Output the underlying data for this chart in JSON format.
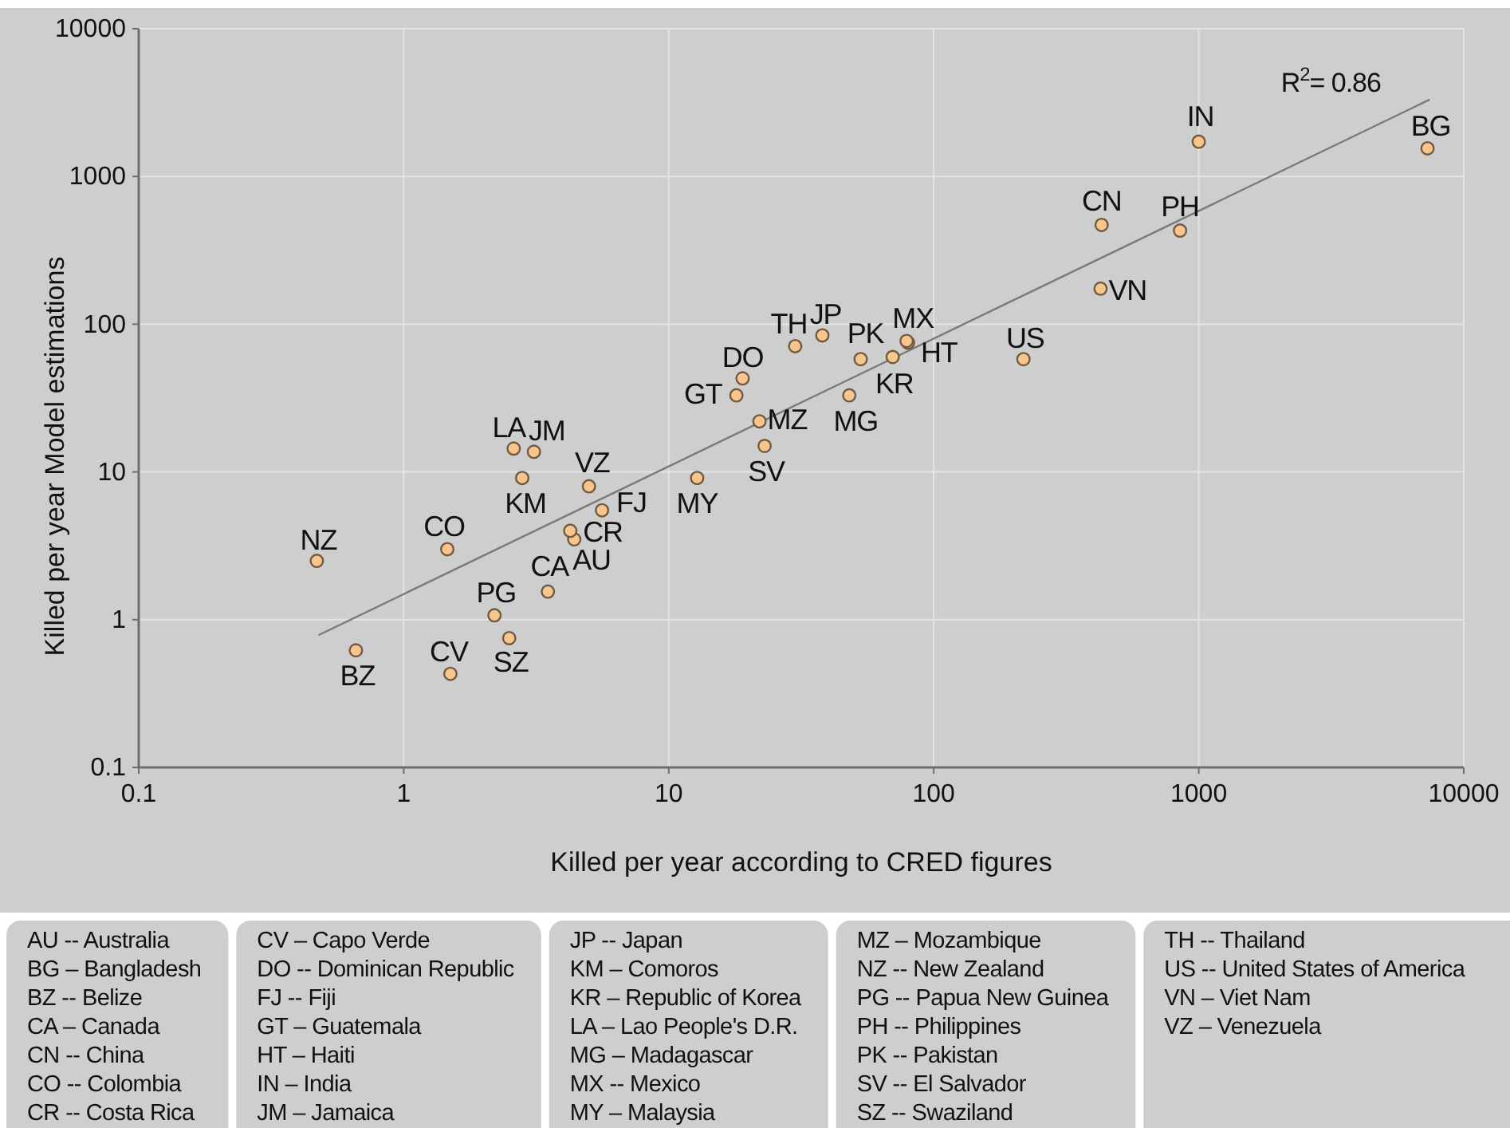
{
  "chart_data": {
    "type": "scatter",
    "xlabel": "Killed per year according to CRED figures",
    "ylabel": "Killed per year Model estimations",
    "log": "xy",
    "xlim": [
      0.1,
      10000
    ],
    "ylim": [
      0.1,
      10000
    ],
    "xticks": [
      0.1,
      1,
      10,
      100,
      1000,
      10000
    ],
    "yticks": [
      0.1,
      1,
      10,
      100,
      1000,
      10000
    ],
    "grid": true,
    "marker": "circle",
    "series": [
      {
        "name": "AU",
        "color": "#f8c68c",
        "x": [
          4.4
        ],
        "values": [
          3.5
        ]
      },
      {
        "name": "BG",
        "color": "#f8c68c",
        "x": [
          7300
        ],
        "values": [
          1550
        ]
      },
      {
        "name": "BZ",
        "color": "#f8c68c",
        "x": [
          0.66
        ],
        "values": [
          0.62
        ]
      },
      {
        "name": "CA",
        "color": "#f8c68c",
        "x": [
          3.5
        ],
        "values": [
          1.55
        ]
      },
      {
        "name": "CN",
        "color": "#f8c68c",
        "x": [
          430
        ],
        "values": [
          470
        ]
      },
      {
        "name": "CO",
        "color": "#f8c68c",
        "x": [
          1.46
        ],
        "values": [
          3.0
        ]
      },
      {
        "name": "CR",
        "color": "#f8c68c",
        "x": [
          4.25
        ],
        "values": [
          4.0
        ]
      },
      {
        "name": "CV",
        "color": "#f8c68c",
        "x": [
          1.5
        ],
        "values": [
          0.43
        ]
      },
      {
        "name": "DO",
        "color": "#f8c68c",
        "x": [
          19
        ],
        "values": [
          43
        ]
      },
      {
        "name": "FJ",
        "color": "#f8c68c",
        "x": [
          5.6
        ],
        "values": [
          5.5
        ]
      },
      {
        "name": "GT",
        "color": "#f8c68c",
        "x": [
          18
        ],
        "values": [
          33
        ]
      },
      {
        "name": "HT",
        "color": "#f8c68c",
        "x": [
          80
        ],
        "values": [
          75
        ]
      },
      {
        "name": "IN",
        "color": "#f8c68c",
        "x": [
          1000
        ],
        "values": [
          1720
        ]
      },
      {
        "name": "JM",
        "color": "#f8c68c",
        "x": [
          3.1
        ],
        "values": [
          13.7
        ]
      },
      {
        "name": "JP",
        "color": "#f8c68c",
        "x": [
          38
        ],
        "values": [
          84
        ]
      },
      {
        "name": "KM",
        "color": "#f8c68c",
        "x": [
          2.8
        ],
        "values": [
          9.1
        ]
      },
      {
        "name": "KR",
        "color": "#f8c68c",
        "x": [
          70
        ],
        "values": [
          60
        ]
      },
      {
        "name": "LA",
        "color": "#f8c68c",
        "x": [
          2.6
        ],
        "values": [
          14.4
        ]
      },
      {
        "name": "MG",
        "color": "#f8c68c",
        "x": [
          48
        ],
        "values": [
          33
        ]
      },
      {
        "name": "MX",
        "color": "#f8c68c",
        "x": [
          79
        ],
        "values": [
          77
        ]
      },
      {
        "name": "MY",
        "color": "#f8c68c",
        "x": [
          12.8
        ],
        "values": [
          9.1
        ]
      },
      {
        "name": "MZ",
        "color": "#f8c68c",
        "x": [
          22
        ],
        "values": [
          22
        ]
      },
      {
        "name": "NZ",
        "color": "#f8c68c",
        "x": [
          0.47
        ],
        "values": [
          2.5
        ]
      },
      {
        "name": "PG",
        "color": "#f8c68c",
        "x": [
          2.2
        ],
        "values": [
          1.07
        ]
      },
      {
        "name": "PH",
        "color": "#f8c68c",
        "x": [
          850
        ],
        "values": [
          430
        ]
      },
      {
        "name": "PK",
        "color": "#f8c68c",
        "x": [
          53
        ],
        "values": [
          58
        ]
      },
      {
        "name": "SV",
        "color": "#f8c68c",
        "x": [
          23
        ],
        "values": [
          15
        ]
      },
      {
        "name": "SZ",
        "color": "#f8c68c",
        "x": [
          2.5
        ],
        "values": [
          0.75
        ]
      },
      {
        "name": "TH",
        "color": "#f8c68c",
        "x": [
          30
        ],
        "values": [
          71
        ]
      },
      {
        "name": "US",
        "color": "#f8c68c",
        "x": [
          218
        ],
        "values": [
          58
        ]
      },
      {
        "name": "VN",
        "color": "#f8c68c",
        "x": [
          426
        ],
        "values": [
          174
        ]
      },
      {
        "name": "VZ",
        "color": "#f8c68c",
        "x": [
          5.0
        ],
        "values": [
          8.0
        ]
      },
      {
        "type": "line",
        "marker": "none",
        "color": "#7a7a7a",
        "x": [
          0.48,
          7400
        ],
        "values": [
          0.79,
          3300
        ]
      }
    ],
    "annotations": [
      "R$^{2}$= 0.86",
      "AU -- Australia",
      "BG – Bangladesh",
      "BZ -- Belize",
      "CA – Canada",
      "CN -- China",
      "CO -- Colombia",
      "CR -- Costa Rica",
      "CV – Capo Verde",
      "DO -- Dominican Republic",
      "FJ -- Fiji",
      "GT – Guatemala",
      "HT – Haiti",
      "IN – India",
      "JM – Jamaica",
      "JP -- Japan",
      "KM – Comoros",
      "KR – Republic of Korea",
      "LA – Lao People's D.R.",
      "MG – Madagascar",
      "MX -- Mexico",
      "MY – Malaysia",
      "MZ – Mozambique",
      "NZ -- New Zealand",
      "PG -- Papua New Guinea",
      "PH -- Philippines",
      "PK -- Pakistan",
      "SV -- El Salvador",
      "SZ -- Swaziland",
      "TH -- Thailand",
      "US -- United States of America",
      "VN – Viet Nam",
      "VZ – Venezuela"
    ]
  }
}
